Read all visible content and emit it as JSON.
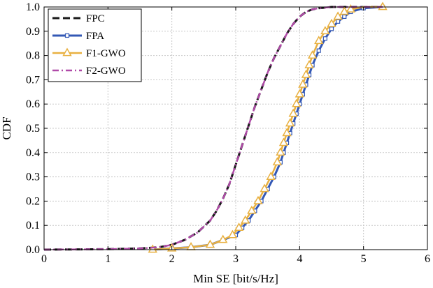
{
  "chart_data": {
    "type": "line",
    "title": "",
    "xlabel": "Min SE [bit/s/Hz]",
    "ylabel": "CDF",
    "xlim": [
      0,
      6
    ],
    "ylim": [
      0,
      1
    ],
    "xticks": [
      0,
      1,
      2,
      3,
      4,
      5,
      6
    ],
    "yticks": [
      0.0,
      0.1,
      0.2,
      0.3,
      0.4,
      0.5,
      0.6,
      0.7,
      0.8,
      0.9,
      1.0
    ],
    "xtick_labels": [
      "0",
      "1",
      "2",
      "3",
      "4",
      "5",
      "6"
    ],
    "ytick_labels": [
      "0.0",
      "0.1",
      "0.2",
      "0.3",
      "0.4",
      "0.5",
      "0.6",
      "0.7",
      "0.8",
      "0.9",
      "1.0"
    ],
    "grid": true,
    "legend_position": "top-left",
    "series": [
      {
        "name": "FPC",
        "color": "#1a1a1a",
        "style": "dashed",
        "marker": "none",
        "x": [
          0,
          1.0,
          1.5,
          1.8,
          2.0,
          2.2,
          2.4,
          2.6,
          2.7,
          2.8,
          2.9,
          3.0,
          3.1,
          3.2,
          3.3,
          3.4,
          3.5,
          3.6,
          3.7,
          3.8,
          3.9,
          4.0,
          4.1,
          4.2,
          4.3,
          4.5,
          4.8,
          5.0,
          5.3
        ],
        "y": [
          0,
          0.002,
          0.005,
          0.01,
          0.02,
          0.04,
          0.07,
          0.12,
          0.16,
          0.21,
          0.27,
          0.35,
          0.43,
          0.51,
          0.59,
          0.66,
          0.73,
          0.79,
          0.84,
          0.89,
          0.93,
          0.96,
          0.98,
          0.99,
          0.995,
          1.0,
          1.0,
          1.0,
          1.0
        ]
      },
      {
        "name": "FPA",
        "color": "#3358b5",
        "style": "solid",
        "marker": "square",
        "x": [
          1.7,
          2.0,
          2.3,
          2.6,
          2.8,
          3.0,
          3.1,
          3.2,
          3.3,
          3.4,
          3.5,
          3.6,
          3.7,
          3.75,
          3.8,
          3.85,
          3.9,
          3.95,
          4.0,
          4.05,
          4.1,
          4.15,
          4.2,
          4.3,
          4.4,
          4.5,
          4.6,
          4.7,
          4.8,
          5.0,
          5.3
        ],
        "y": [
          0,
          0.005,
          0.01,
          0.02,
          0.04,
          0.06,
          0.09,
          0.12,
          0.16,
          0.2,
          0.25,
          0.3,
          0.36,
          0.4,
          0.44,
          0.48,
          0.52,
          0.56,
          0.6,
          0.64,
          0.68,
          0.72,
          0.76,
          0.82,
          0.87,
          0.91,
          0.94,
          0.96,
          0.98,
          0.995,
          1.0
        ]
      },
      {
        "name": "F1-GWO",
        "color": "#e8b040",
        "style": "solid",
        "marker": "triangle",
        "x": [
          1.7,
          2.0,
          2.3,
          2.6,
          2.8,
          2.95,
          3.05,
          3.15,
          3.25,
          3.35,
          3.45,
          3.55,
          3.65,
          3.7,
          3.75,
          3.8,
          3.85,
          3.9,
          3.95,
          4.0,
          4.05,
          4.1,
          4.15,
          4.2,
          4.3,
          4.4,
          4.5,
          4.6,
          4.7,
          4.8,
          5.0,
          5.3
        ],
        "y": [
          0,
          0.005,
          0.01,
          0.02,
          0.04,
          0.06,
          0.09,
          0.12,
          0.16,
          0.2,
          0.25,
          0.3,
          0.36,
          0.4,
          0.44,
          0.48,
          0.52,
          0.56,
          0.6,
          0.64,
          0.68,
          0.72,
          0.76,
          0.8,
          0.86,
          0.9,
          0.93,
          0.96,
          0.98,
          0.99,
          1.0,
          1.0
        ]
      },
      {
        "name": "F2-GWO",
        "color": "#b04aa8",
        "style": "dashdot",
        "marker": "none",
        "x": [
          0,
          1.0,
          1.5,
          1.8,
          2.0,
          2.2,
          2.4,
          2.6,
          2.7,
          2.8,
          2.9,
          3.0,
          3.1,
          3.2,
          3.3,
          3.4,
          3.5,
          3.6,
          3.7,
          3.8,
          3.9,
          4.0,
          4.1,
          4.2,
          4.3,
          4.5,
          4.8,
          5.0,
          5.3
        ],
        "y": [
          0,
          0.002,
          0.005,
          0.01,
          0.02,
          0.04,
          0.07,
          0.12,
          0.16,
          0.21,
          0.27,
          0.35,
          0.43,
          0.51,
          0.59,
          0.66,
          0.73,
          0.79,
          0.84,
          0.89,
          0.93,
          0.96,
          0.98,
          0.99,
          0.995,
          1.0,
          1.0,
          1.0,
          1.0
        ]
      }
    ]
  }
}
